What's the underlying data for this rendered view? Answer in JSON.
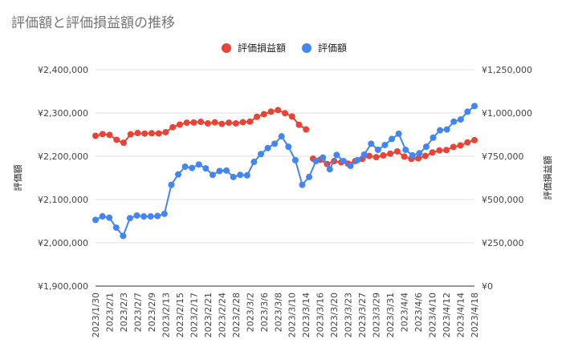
{
  "chart_data": {
    "type": "line",
    "title": "評価額と評価損益額の推移",
    "ylabel_left": "評価額",
    "ylabel_right": "評価損益額",
    "ylim_left": [
      1900000,
      2400000
    ],
    "ylim_right": [
      0,
      1250000
    ],
    "yticks_left": [
      "¥2,400,000",
      "¥2,300,000",
      "¥2,200,000",
      "¥2,100,000",
      "¥2,000,000",
      "¥1,900,000"
    ],
    "yticks_right": [
      "¥1,250,000",
      "¥1,000,000",
      "¥750,000",
      "¥500,000",
      "¥250,000",
      "¥0"
    ],
    "grid": true,
    "legend_position": "top",
    "x_tick_labels": [
      "2023/1/30",
      "2023/2/1",
      "2023/2/3",
      "2023/2/7",
      "2023/2/9",
      "2023/2/13",
      "2023/2/15",
      "2023/2/17",
      "2023/2/21",
      "2023/2/24",
      "2023/2/28",
      "2023/3/2",
      "2023/3/6",
      "2023/3/8",
      "2023/3/10",
      "2023/3/14",
      "2023/3/16",
      "2023/3/20",
      "2023/3/23",
      "2023/3/27",
      "2023/3/29",
      "2023/3/31",
      "2023/4/4",
      "2023/4/6",
      "2023/4/10",
      "2023/4/12",
      "2023/4/14",
      "2023/4/18"
    ],
    "series": [
      {
        "name": "評価損益額",
        "axis": "right",
        "color": "#ea4335",
        "values": [
          868000,
          878000,
          873000,
          845000,
          828000,
          877000,
          884000,
          881000,
          883000,
          882000,
          889000,
          918000,
          933000,
          944000,
          945000,
          949000,
          940000,
          946000,
          937000,
          944000,
          940000,
          947000,
          950000,
          978000,
          993000,
          1008000,
          1017000,
          999000,
          980000,
          932000,
          905000,
          736000,
          730000,
          705000,
          722000,
          715000,
          707000,
          722000,
          735000,
          752000,
          745000,
          755000,
          765000,
          778000,
          748000,
          735000,
          738000,
          752000,
          772000,
          784000,
          786000,
          804000,
          813000,
          830000,
          843000
        ],
        "segments": [
          [
            0,
            30
          ],
          [
            31,
            54
          ]
        ]
      },
      {
        "name": "評価額",
        "axis": "left",
        "color": "#4285f4",
        "values": [
          2053000,
          2061000,
          2058000,
          2035000,
          2016000,
          2057000,
          2063000,
          2061000,
          2061000,
          2062000,
          2067000,
          2134000,
          2158000,
          2176000,
          2173000,
          2181000,
          2172000,
          2157000,
          2166000,
          2167000,
          2152000,
          2157000,
          2156000,
          2187000,
          2205000,
          2219000,
          2229000,
          2246000,
          2222000,
          2191000,
          2134000,
          2152000,
          2189000,
          2197000,
          2170000,
          2203000,
          2189000,
          2178000,
          2191000,
          2204000,
          2229000,
          2215000,
          2226000,
          2240000,
          2252000,
          2215000,
          2202000,
          2207000,
          2222000,
          2243000,
          2260000,
          2262000,
          2280000,
          2285000,
          2303000,
          2316000
        ]
      }
    ]
  }
}
